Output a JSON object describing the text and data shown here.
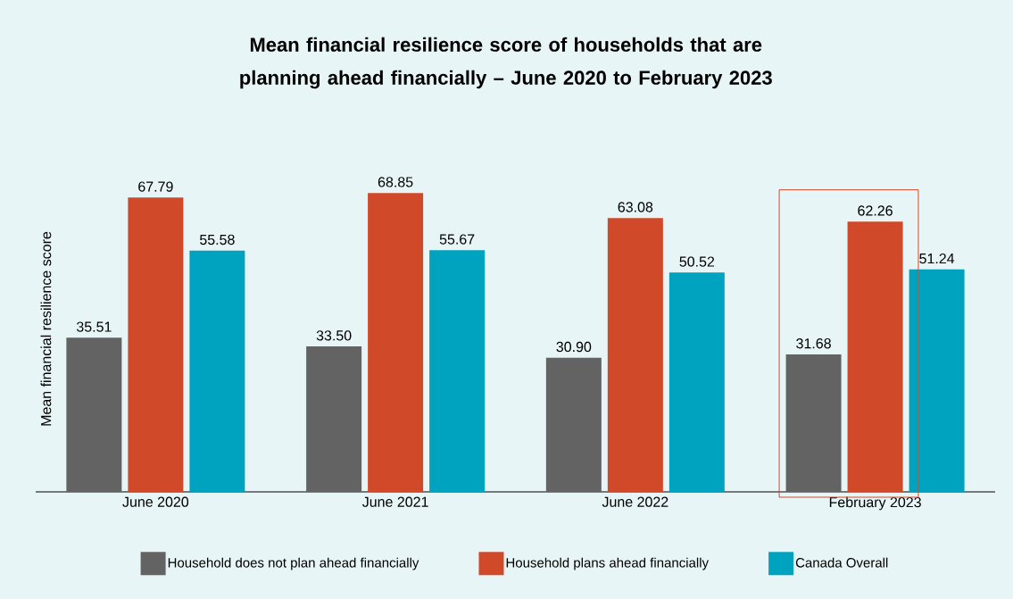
{
  "chart_data": {
    "type": "bar",
    "title": "Mean financial resilience score of households that are planning ahead financially – June 2020 to February 2023",
    "ylabel": "Mean financial resilience score",
    "categories": [
      "June 2020",
      "June 2021",
      "June 2022",
      "February 2023"
    ],
    "legend": "bottom",
    "series": [
      {
        "name": "Household does not plan ahead financially",
        "color": "#636363",
        "values": [
          35.51,
          33.5,
          30.9,
          31.68
        ],
        "value_labels": [
          "35.51",
          "33.50",
          "30.90",
          "31.68"
        ]
      },
      {
        "name": "Household plans ahead financially",
        "color": "#d04a2a",
        "values": [
          67.79,
          68.85,
          63.08,
          62.26
        ],
        "value_labels": [
          "67.79",
          "68.85",
          "63.08",
          "62.26"
        ]
      },
      {
        "name": "Canada Overall",
        "color": "#00a3bf",
        "values": [
          55.58,
          55.67,
          50.52,
          51.24
        ],
        "value_labels": [
          "55.58",
          "55.67",
          "50.52",
          "51.24"
        ]
      }
    ]
  }
}
